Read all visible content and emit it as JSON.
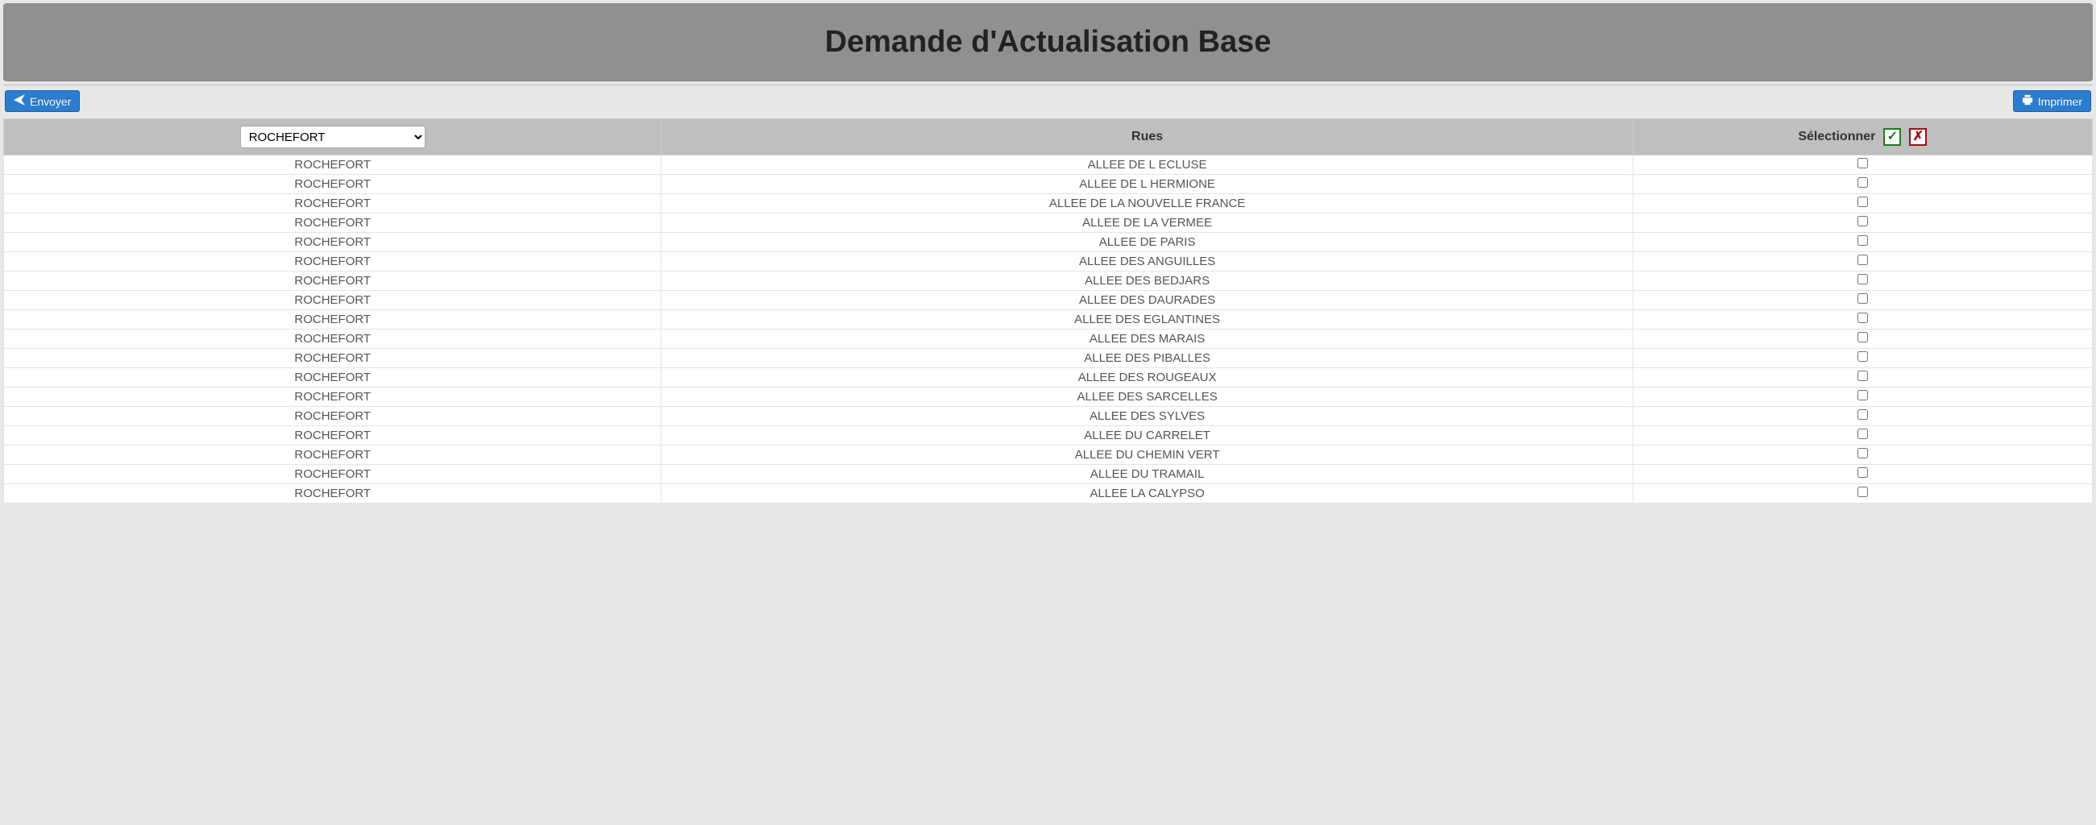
{
  "header": {
    "title": "Demande d'Actualisation Base"
  },
  "toolbar": {
    "send_label": "Envoyer",
    "print_label": "Imprimer"
  },
  "table": {
    "columns": {
      "commune_selected": "ROCHEFORT",
      "rues_label": "Rues",
      "select_label": "Sélectionner"
    },
    "rows": [
      {
        "commune": "ROCHEFORT",
        "rue": "ALLEE DE L ECLUSE"
      },
      {
        "commune": "ROCHEFORT",
        "rue": "ALLEE DE L HERMIONE"
      },
      {
        "commune": "ROCHEFORT",
        "rue": "ALLEE DE LA NOUVELLE FRANCE"
      },
      {
        "commune": "ROCHEFORT",
        "rue": "ALLEE DE LA VERMEE"
      },
      {
        "commune": "ROCHEFORT",
        "rue": "ALLEE DE PARIS"
      },
      {
        "commune": "ROCHEFORT",
        "rue": "ALLEE DES ANGUILLES"
      },
      {
        "commune": "ROCHEFORT",
        "rue": "ALLEE DES BEDJARS"
      },
      {
        "commune": "ROCHEFORT",
        "rue": "ALLEE DES DAURADES"
      },
      {
        "commune": "ROCHEFORT",
        "rue": "ALLEE DES EGLANTINES"
      },
      {
        "commune": "ROCHEFORT",
        "rue": "ALLEE DES MARAIS"
      },
      {
        "commune": "ROCHEFORT",
        "rue": "ALLEE DES PIBALLES"
      },
      {
        "commune": "ROCHEFORT",
        "rue": "ALLEE DES ROUGEAUX"
      },
      {
        "commune": "ROCHEFORT",
        "rue": "ALLEE DES SARCELLES"
      },
      {
        "commune": "ROCHEFORT",
        "rue": "ALLEE DES SYLVES"
      },
      {
        "commune": "ROCHEFORT",
        "rue": "ALLEE DU CARRELET"
      },
      {
        "commune": "ROCHEFORT",
        "rue": "ALLEE DU CHEMIN VERT"
      },
      {
        "commune": "ROCHEFORT",
        "rue": "ALLEE DU TRAMAIL"
      },
      {
        "commune": "ROCHEFORT",
        "rue": "ALLEE LA CALYPSO"
      }
    ]
  },
  "colors": {
    "button_bg": "#2b7dd1",
    "header_bg": "#909090",
    "thead_bg": "#bfbfbf",
    "check_color": "#1a7f1a",
    "cross_color": "#a01010"
  }
}
